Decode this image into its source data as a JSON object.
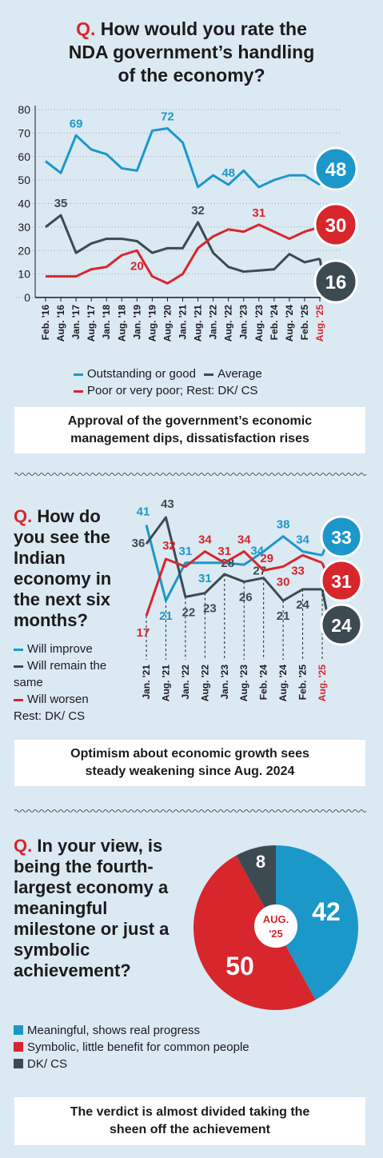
{
  "section1": {
    "q_mark": "Q.",
    "question_line1": "How would you rate the",
    "question_line2": "NDA government’s handling",
    "question_line3": "of the economy?",
    "legend": {
      "outstanding": "Outstanding or good",
      "average": "Average",
      "poor": "Poor or very poor; Rest: DK/ CS"
    },
    "caption": "Approval of the government’s economic\nmanagement dips, dissatisfaction rises"
  },
  "section2": {
    "q_mark": "Q.",
    "question": "How do you see the Indian economy in the next six months?",
    "legend": {
      "improve": "Will improve",
      "same": "Will remain the same",
      "worsen": "Will worsen",
      "rest": "Rest: DK/ CS"
    },
    "caption": "Optimism about economic growth sees\nsteady weakening since Aug. 2024"
  },
  "section3": {
    "q_mark": "Q.",
    "question": "In your view, is being the fourth-largest economy a meaningful milestone or just a symbolic achievement?",
    "legend": {
      "meaningful": "Meaningful, shows real progress",
      "symbolic": "Symbolic, little benefit for common people",
      "dkcs": "DK/ CS"
    },
    "caption": "The verdict is almost divided taking the\nsheen off the achievement"
  },
  "colors": {
    "blue": "#1c97c9",
    "gray": "#3c4a52",
    "red": "#d7262c",
    "background": "#dbe9f3"
  },
  "chart_data": [
    {
      "type": "line",
      "categories": [
        "Feb. '16",
        "Aug. '16",
        "Jan. '17",
        "Aug. '17",
        "Jan. '18",
        "Aug. '18",
        "Jan. '19",
        "Aug. '19",
        "Aug. '20",
        "Jan. '21",
        "Aug. '21",
        "Jan. '22",
        "Aug. '22",
        "Jan. '23",
        "Aug. '23",
        "Feb. '24",
        "Aug. '24",
        "Feb. '25",
        "Aug. '25"
      ],
      "highlight_category": "Aug. '25",
      "ylim": [
        0,
        80
      ],
      "yticks": [
        0,
        10,
        20,
        30,
        40,
        50,
        60,
        70,
        80
      ],
      "series": [
        {
          "name": "Outstanding or good",
          "color": "#1c97c9",
          "values": [
            58,
            53,
            69,
            63,
            61,
            55,
            54,
            71,
            72,
            66,
            47,
            52,
            48,
            54,
            47,
            50,
            52,
            52,
            48
          ],
          "labels": {
            "2": "69",
            "8": "72",
            "12": "48"
          },
          "end_label": "48"
        },
        {
          "name": "Average",
          "color": "#3c4a52",
          "values": [
            30,
            35,
            19,
            23,
            25,
            25,
            24,
            19,
            21,
            21,
            32,
            19,
            13,
            11,
            11.5,
            12,
            18.5,
            15,
            16.5
          ],
          "labels": {
            "1": "35",
            "10": "32"
          },
          "end_label": "16"
        },
        {
          "name": "Poor or very poor",
          "color": "#d7262c",
          "values": [
            9,
            9,
            9,
            12,
            13,
            18,
            20,
            9,
            6,
            10,
            21,
            26,
            29,
            28,
            31,
            28,
            25,
            28,
            30
          ],
          "labels": {
            "6": "20",
            "14": "31"
          },
          "end_label": "30"
        }
      ]
    },
    {
      "type": "line",
      "categories": [
        "Jan. '21",
        "Aug. '21",
        "Jan. '22",
        "Aug. '22",
        "Jan. '23",
        "Aug. '23",
        "Feb. '24",
        "Aug. '24",
        "Feb. '25",
        "Aug. '25"
      ],
      "highlight_category": "Aug. '25",
      "series": [
        {
          "name": "Will improve",
          "color": "#1c97c9",
          "values": [
            41,
            21,
            31,
            31,
            31,
            30.5,
            34,
            38,
            34,
            33
          ],
          "labels": [
            "41",
            "21",
            "31",
            "31",
            "",
            "",
            "34",
            "38",
            "34",
            ""
          ],
          "end_label": "33"
        },
        {
          "name": "Will remain the same",
          "color": "#3c4a52",
          "values": [
            36,
            43,
            22,
            23,
            28,
            26,
            27,
            21,
            24,
            24
          ],
          "labels": [
            "36",
            "43",
            "22",
            "23",
            "28",
            "26",
            "27",
            "21",
            "24",
            ""
          ],
          "end_label": "24"
        },
        {
          "name": "Will worsen",
          "color": "#d7262c",
          "values": [
            17,
            32,
            30,
            34,
            31,
            34,
            29,
            30,
            33,
            31
          ],
          "labels": [
            "17",
            "32",
            "",
            "34",
            "31",
            "34",
            "29",
            "30",
            "33",
            ""
          ],
          "end_label": "31"
        }
      ]
    },
    {
      "type": "pie",
      "center_label": "AUG. '25",
      "slices": [
        {
          "name": "Meaningful, shows real progress",
          "value": 42,
          "color": "#1c97c9"
        },
        {
          "name": "Symbolic, little benefit for common people",
          "value": 50,
          "color": "#d7262c"
        },
        {
          "name": "DK/ CS",
          "value": 8,
          "color": "#3c4a52"
        }
      ]
    }
  ]
}
